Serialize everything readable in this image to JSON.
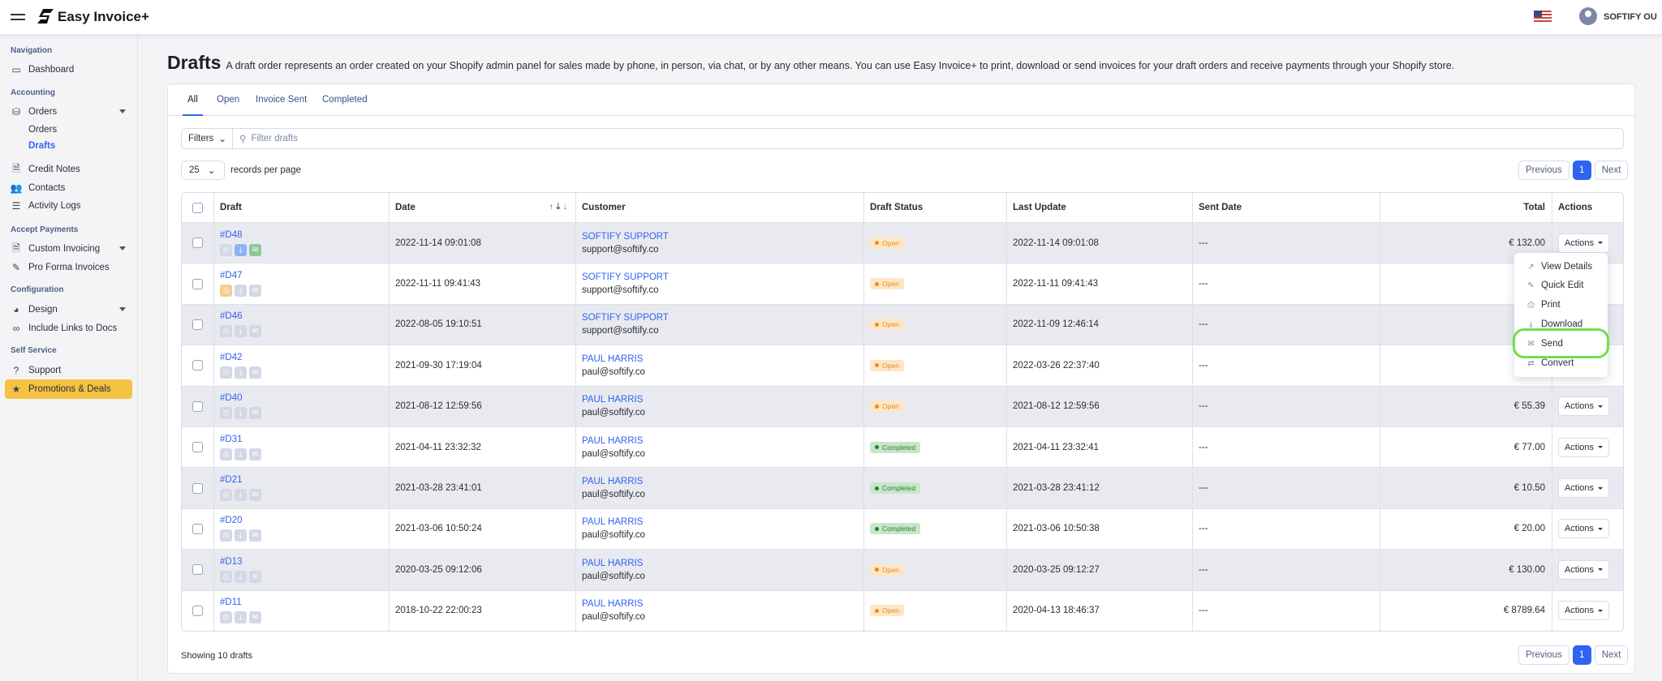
{
  "header": {
    "brand": "Easy Invoice+",
    "user": "SOFTIFY OU",
    "flag": "us-flag-icon"
  },
  "sidebar": {
    "sections": {
      "navigation": "Navigation",
      "accounting": "Accounting",
      "accept": "Accept Payments",
      "config": "Configuration",
      "self": "Self Service"
    },
    "items": {
      "dashboard": "Dashboard",
      "orders": "Orders",
      "orders_sub": "Orders",
      "drafts": "Drafts",
      "credit": "Credit Notes",
      "contacts": "Contacts",
      "logs": "Activity Logs",
      "custom": "Custom Invoicing",
      "proforma": "Pro Forma Invoices",
      "design": "Design",
      "links": "Include Links to Docs",
      "support": "Support",
      "promo": "Promotions & Deals"
    }
  },
  "page": {
    "title": "Drafts",
    "description": "A draft order represents an order created on your Shopify admin panel for sales made by phone, in person, via chat, or by any other means. You can use Easy Invoice+ to print, download or send invoices for your draft orders and receive payments through your Shopify store."
  },
  "tabs": [
    "All",
    "Open",
    "Invoice Sent",
    "Completed"
  ],
  "filters": {
    "label": "Filters",
    "placeholder": "Filter drafts"
  },
  "per_page": {
    "value": "25",
    "label": "records per page"
  },
  "pagination": {
    "previous": "Previous",
    "current": "1",
    "next": "Next"
  },
  "table": {
    "headers": {
      "draft": "Draft",
      "date": "Date",
      "customer": "Customer",
      "status": "Draft Status",
      "last": "Last Update",
      "sent": "Sent Date",
      "total": "Total",
      "actions": "Actions"
    },
    "rows": [
      {
        "id": "#D48",
        "date": "2022-11-14 09:01:08",
        "name": "SOFTIFY SUPPORT",
        "email": "support@softify.co",
        "status": "Open",
        "last": "2022-11-14 09:01:08",
        "sent": "---",
        "total": "€ 132.00",
        "icons": [
          "grey",
          "blue",
          "green"
        ]
      },
      {
        "id": "#D47",
        "date": "2022-11-11 09:41:43",
        "name": "SOFTIFY SUPPORT",
        "email": "support@softify.co",
        "status": "Open",
        "last": "2022-11-11 09:41:43",
        "sent": "---",
        "total": "",
        "icons": [
          "orange",
          "grey",
          "grey"
        ]
      },
      {
        "id": "#D46",
        "date": "2022-08-05 19:10:51",
        "name": "SOFTIFY SUPPORT",
        "email": "support@softify.co",
        "status": "Open",
        "last": "2022-11-09 12:46:14",
        "sent": "---",
        "total": "",
        "icons": [
          "grey",
          "grey",
          "grey"
        ]
      },
      {
        "id": "#D42",
        "date": "2021-09-30 17:19:04",
        "name": "PAUL HARRIS",
        "email": "paul@softify.co",
        "status": "Open",
        "last": "2022-03-26 22:37:40",
        "sent": "---",
        "total": "",
        "icons": [
          "grey",
          "grey",
          "grey"
        ]
      },
      {
        "id": "#D40",
        "date": "2021-08-12 12:59:56",
        "name": "PAUL HARRIS",
        "email": "paul@softify.co",
        "status": "Open",
        "last": "2021-08-12 12:59:56",
        "sent": "---",
        "total": "€ 55.39",
        "icons": [
          "grey",
          "grey",
          "grey"
        ]
      },
      {
        "id": "#D31",
        "date": "2021-04-11 23:32:32",
        "name": "PAUL HARRIS",
        "email": "paul@softify.co",
        "status": "Completed",
        "last": "2021-04-11 23:32:41",
        "sent": "---",
        "total": "€ 77.00",
        "icons": [
          "grey",
          "grey",
          "grey"
        ]
      },
      {
        "id": "#D21",
        "date": "2021-03-28 23:41:01",
        "name": "PAUL HARRIS",
        "email": "paul@softify.co",
        "status": "Completed",
        "last": "2021-03-28 23:41:12",
        "sent": "---",
        "total": "€ 10.50",
        "icons": [
          "grey",
          "grey",
          "grey"
        ]
      },
      {
        "id": "#D20",
        "date": "2021-03-06 10:50:24",
        "name": "PAUL HARRIS",
        "email": "paul@softify.co",
        "status": "Completed",
        "last": "2021-03-06 10:50:38",
        "sent": "---",
        "total": "€ 20.00",
        "icons": [
          "grey",
          "grey",
          "grey"
        ]
      },
      {
        "id": "#D13",
        "date": "2020-03-25 09:12:06",
        "name": "PAUL HARRIS",
        "email": "paul@softify.co",
        "status": "Open",
        "last": "2020-03-25 09:12:27",
        "sent": "---",
        "total": "€ 130.00",
        "icons": [
          "grey",
          "grey",
          "grey"
        ]
      },
      {
        "id": "#D11",
        "date": "2018-10-22 22:00:23",
        "name": "PAUL HARRIS",
        "email": "paul@softify.co",
        "status": "Open",
        "last": "2020-04-13 18:46:37",
        "sent": "---",
        "total": "€ 8789.64",
        "icons": [
          "grey",
          "grey",
          "grey"
        ]
      }
    ],
    "action_label": "Actions"
  },
  "actions_menu": {
    "items": [
      "View Details",
      "Quick Edit",
      "Print",
      "Download",
      "Send",
      "Convert"
    ],
    "highlighted": "Send",
    "highlight_color": "#6fe04a"
  },
  "footer": {
    "showing": "Showing 10 drafts"
  },
  "colors": {
    "accent": "#2f63f0",
    "promo": "#f5c242",
    "grey": "#d3d8e4",
    "blue": "#8fb0f2",
    "green": "#8cc79a",
    "orange": "#f8cc8c"
  }
}
